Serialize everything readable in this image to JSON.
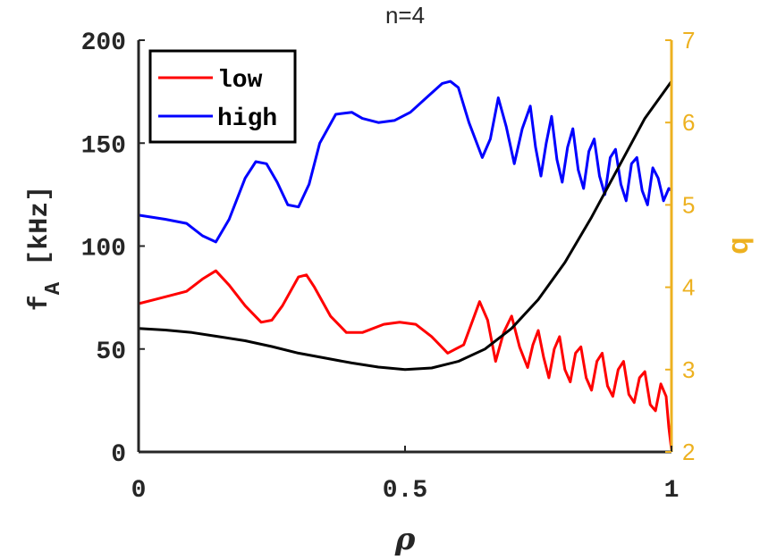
{
  "chart_data": {
    "type": "line",
    "title": "n=4",
    "xlabel": "ρ",
    "ylabel": "f",
    "ylabel_sub": "A",
    "ylabel_unit": "[kHz]",
    "y2label": "q",
    "xlim": [
      0,
      1
    ],
    "ylim": [
      0,
      200
    ],
    "y2lim": [
      2,
      7
    ],
    "xticks": [
      0,
      0.5,
      1
    ],
    "xtick_labels": [
      "0",
      "0.5",
      "1"
    ],
    "yticks": [
      0,
      50,
      100,
      150,
      200
    ],
    "ytick_labels": [
      "0",
      "50",
      "100",
      "150",
      "200"
    ],
    "y2ticks": [
      2,
      3,
      4,
      5,
      6,
      7
    ],
    "y2tick_labels": [
      "2",
      "3",
      "4",
      "5",
      "6",
      "7"
    ],
    "grid": false,
    "legend_position": "top-left",
    "series": [
      {
        "name": "low",
        "axis": "left",
        "color": "#ff0000",
        "x": [
          0,
          0.03,
          0.06,
          0.09,
          0.12,
          0.145,
          0.17,
          0.2,
          0.23,
          0.25,
          0.27,
          0.3,
          0.315,
          0.33,
          0.36,
          0.39,
          0.42,
          0.46,
          0.49,
          0.52,
          0.55,
          0.58,
          0.61,
          0.64,
          0.655,
          0.67,
          0.685,
          0.7,
          0.715,
          0.73,
          0.74,
          0.75,
          0.76,
          0.77,
          0.78,
          0.79,
          0.8,
          0.81,
          0.82,
          0.83,
          0.84,
          0.85,
          0.86,
          0.87,
          0.88,
          0.89,
          0.9,
          0.91,
          0.92,
          0.93,
          0.94,
          0.95,
          0.96,
          0.97,
          0.98,
          0.99,
          0.995,
          1.0
        ],
        "y": [
          72,
          74,
          76,
          78,
          84,
          88,
          81,
          71,
          63,
          64,
          71,
          85,
          86,
          80,
          66,
          58,
          58,
          62,
          63,
          62,
          56,
          48,
          52,
          73,
          64,
          44,
          58,
          66,
          51,
          41,
          52,
          59,
          46,
          36,
          50,
          56,
          40,
          34,
          48,
          51,
          36,
          30,
          44,
          48,
          32,
          27,
          40,
          44,
          28,
          24,
          36,
          39,
          23,
          20,
          33,
          27,
          12,
          1
        ]
      },
      {
        "name": "high",
        "axis": "left",
        "color": "#0000ff",
        "x": [
          0,
          0.05,
          0.09,
          0.12,
          0.145,
          0.17,
          0.2,
          0.22,
          0.24,
          0.26,
          0.28,
          0.3,
          0.32,
          0.34,
          0.37,
          0.4,
          0.42,
          0.45,
          0.48,
          0.51,
          0.54,
          0.57,
          0.585,
          0.6,
          0.62,
          0.645,
          0.66,
          0.675,
          0.69,
          0.705,
          0.72,
          0.735,
          0.745,
          0.755,
          0.765,
          0.775,
          0.785,
          0.795,
          0.805,
          0.815,
          0.825,
          0.835,
          0.845,
          0.855,
          0.865,
          0.875,
          0.885,
          0.895,
          0.905,
          0.915,
          0.925,
          0.935,
          0.945,
          0.955,
          0.965,
          0.975,
          0.985,
          0.995,
          1.0
        ],
        "y": [
          115,
          113,
          111,
          105,
          102,
          113,
          133,
          141,
          140,
          131,
          120,
          119,
          130,
          150,
          164,
          165,
          162,
          160,
          161,
          165,
          172,
          179,
          180,
          177,
          160,
          143,
          152,
          172,
          158,
          140,
          157,
          168,
          148,
          134,
          150,
          163,
          142,
          131,
          148,
          157,
          137,
          128,
          146,
          152,
          134,
          125,
          143,
          147,
          130,
          122,
          140,
          143,
          127,
          120,
          138,
          133,
          122,
          128,
          127
        ]
      },
      {
        "name": "q",
        "axis": "right",
        "color": "#000000",
        "x": [
          0,
          0.05,
          0.1,
          0.15,
          0.2,
          0.25,
          0.3,
          0.35,
          0.4,
          0.45,
          0.5,
          0.55,
          0.6,
          0.65,
          0.7,
          0.75,
          0.8,
          0.85,
          0.9,
          0.95,
          1.0
        ],
        "y": [
          3.5,
          3.48,
          3.45,
          3.4,
          3.35,
          3.28,
          3.2,
          3.14,
          3.08,
          3.03,
          3.0,
          3.02,
          3.1,
          3.25,
          3.5,
          3.85,
          4.3,
          4.85,
          5.45,
          6.05,
          6.5
        ]
      }
    ]
  }
}
